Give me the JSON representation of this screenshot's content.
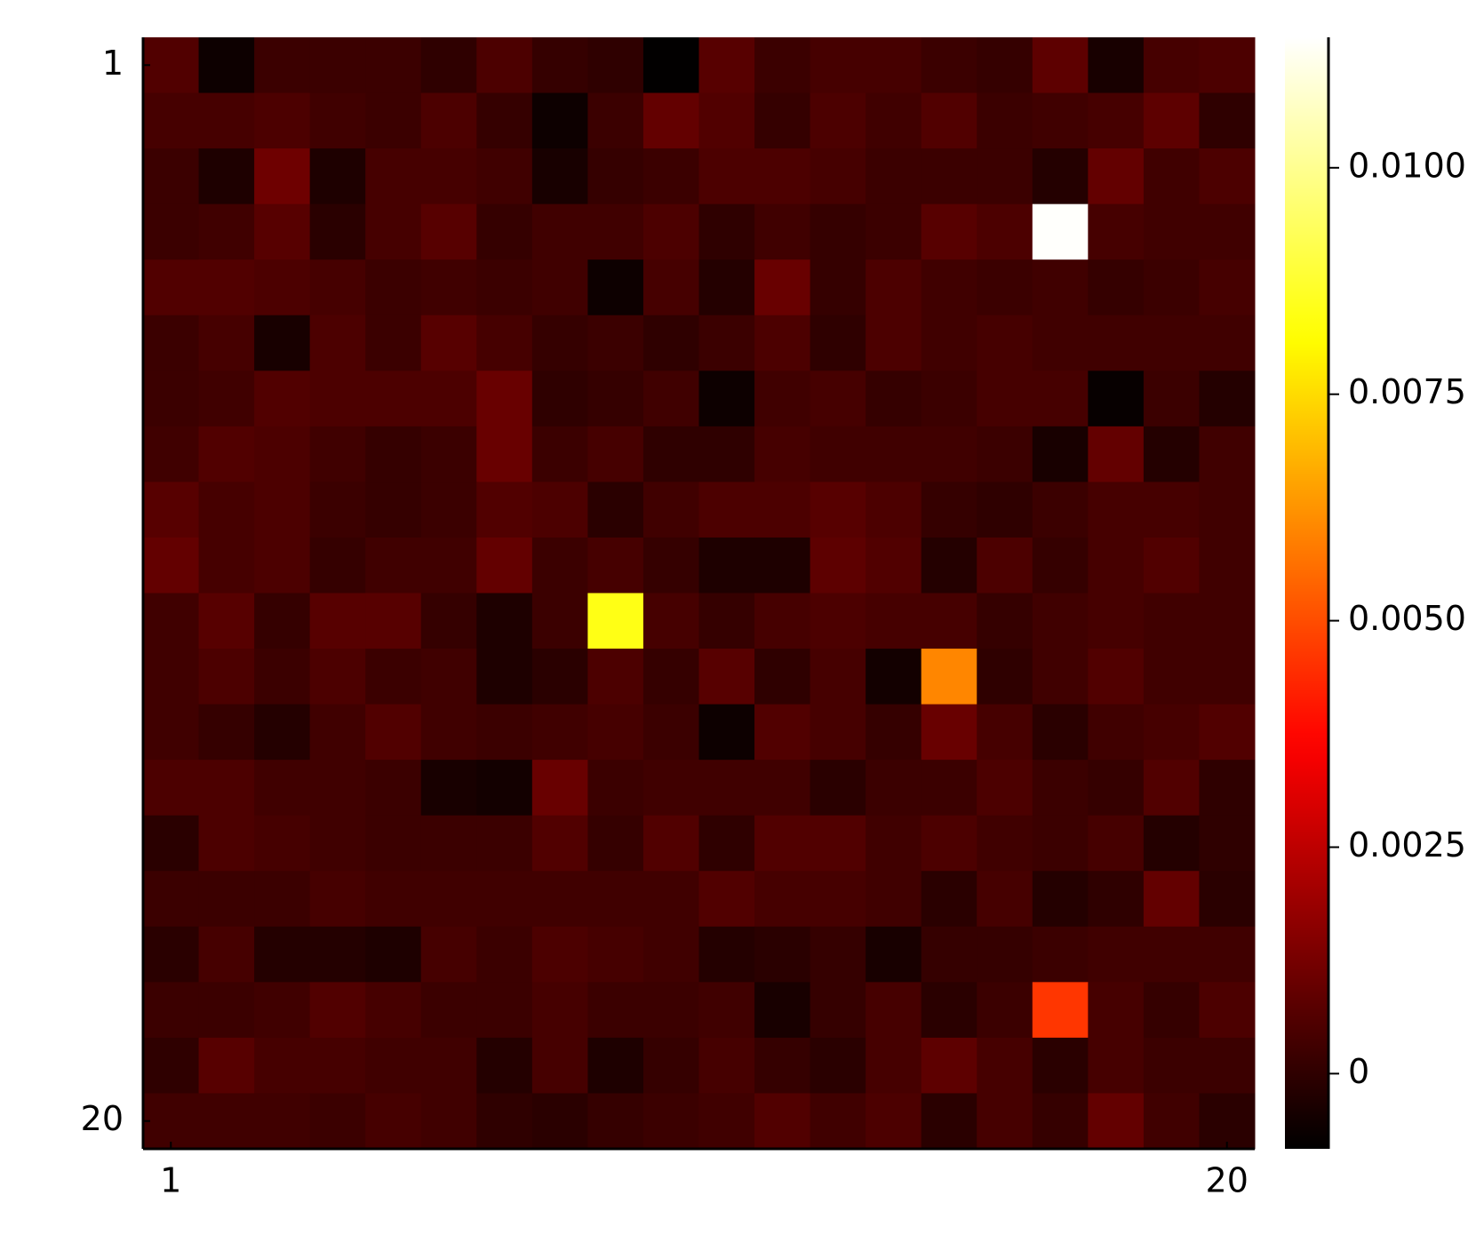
{
  "chart_data": {
    "type": "heatmap",
    "colormap": "hot",
    "xlim": [
      0.5,
      20.5
    ],
    "xticks": [
      1,
      20
    ],
    "ylim": [
      20.5,
      0.5
    ],
    "yticks": [
      1,
      20
    ],
    "zlim": [
      -0.00083,
      0.01144
    ],
    "colorbar_ticks": [
      0,
      0.0025,
      {
        "value": 0.005,
        "label": "0.0050"
      },
      0.0075,
      {
        "value": 0.01,
        "label": "0.0100"
      }
    ],
    "z": [
      [
        0.0006,
        -0.0006,
        0.0002,
        0.0002,
        0.0002,
        0.0,
        0.0005,
        0.0001,
        0.0,
        -0.0008,
        0.0007,
        0.0002,
        0.0004,
        0.0004,
        0.0002,
        0.0001,
        0.0008,
        -0.0004,
        0.0004,
        0.0005
      ],
      [
        0.0004,
        0.0004,
        0.0005,
        0.0003,
        0.0002,
        0.0005,
        0.0001,
        -0.0006,
        0.0002,
        0.0009,
        0.0006,
        0.0001,
        0.0005,
        0.0003,
        0.0006,
        0.0002,
        0.0003,
        0.0004,
        0.0008,
        0.0
      ],
      [
        0.0002,
        -0.0003,
        0.0011,
        -0.0003,
        0.0004,
        0.0004,
        0.0003,
        -0.0004,
        0.0001,
        0.0002,
        0.0005,
        0.0005,
        0.0004,
        0.0002,
        0.0002,
        0.0002,
        -0.0002,
        0.0009,
        0.0003,
        0.0005
      ],
      [
        0.0002,
        0.0003,
        0.0007,
        -0.0001,
        0.0004,
        0.0007,
        0.0001,
        0.0003,
        0.0003,
        0.0005,
        0.0,
        0.0003,
        0.0001,
        0.0002,
        0.0007,
        0.0005,
        0.0114,
        0.0004,
        0.0003,
        0.0003
      ],
      [
        0.0006,
        0.0006,
        0.0005,
        0.0004,
        0.0002,
        0.0003,
        0.0002,
        0.0003,
        -0.0006,
        0.0004,
        -0.0002,
        0.001,
        0.0001,
        0.0005,
        0.0003,
        0.0002,
        0.0003,
        0.0001,
        0.0002,
        0.0004
      ],
      [
        0.0002,
        0.0004,
        -0.0004,
        0.0005,
        0.0002,
        0.0007,
        0.0004,
        0.0001,
        0.0002,
        0.0,
        0.0002,
        0.0005,
        0.0,
        0.0005,
        0.0003,
        0.0004,
        0.0003,
        0.0003,
        0.0003,
        0.0003
      ],
      [
        0.0002,
        0.0003,
        0.0006,
        0.0005,
        0.0005,
        0.0005,
        0.001,
        0.0,
        0.0001,
        0.0003,
        -0.0006,
        0.0003,
        0.0004,
        0.0001,
        0.0002,
        0.0004,
        0.0004,
        -0.0007,
        0.0002,
        -0.0002
      ],
      [
        0.0003,
        0.0006,
        0.0005,
        0.0003,
        0.0001,
        0.0002,
        0.001,
        0.0002,
        0.0004,
        0.0,
        0.0,
        0.0004,
        0.0003,
        0.0003,
        0.0003,
        0.0002,
        -0.0004,
        0.0009,
        -0.0002,
        0.0003
      ],
      [
        0.0007,
        0.0004,
        0.0005,
        0.0002,
        0.0001,
        0.0002,
        0.0006,
        0.0005,
        -0.0001,
        0.0003,
        0.0005,
        0.0005,
        0.0007,
        0.0005,
        0.0001,
        0.0,
        0.0002,
        0.0004,
        0.0004,
        0.0003
      ],
      [
        0.0009,
        0.0004,
        0.0005,
        0.0001,
        0.0003,
        0.0003,
        0.0009,
        0.0002,
        0.0004,
        0.0001,
        -0.0003,
        -0.0003,
        0.0008,
        0.0006,
        -0.0002,
        0.0005,
        0.0001,
        0.0004,
        0.0006,
        0.0003
      ],
      [
        0.0003,
        0.0007,
        0.0001,
        0.0007,
        0.0007,
        0.0001,
        -0.0003,
        0.0002,
        0.0084,
        0.0004,
        0.0001,
        0.0004,
        0.0005,
        0.0004,
        0.0004,
        0.0001,
        0.0003,
        0.0004,
        0.0003,
        0.0003
      ],
      [
        0.0003,
        0.0005,
        0.0002,
        0.0005,
        0.0002,
        0.0003,
        -0.0003,
        -0.0001,
        0.0005,
        0.0001,
        0.0007,
        0.0,
        0.0004,
        -0.0005,
        0.006,
        0.0,
        0.0003,
        0.0006,
        0.0003,
        0.0003
      ],
      [
        0.0003,
        0.0001,
        -0.0002,
        0.0003,
        0.0006,
        0.0003,
        0.0002,
        0.0003,
        0.0004,
        0.0002,
        -0.0006,
        0.0006,
        0.0004,
        0.0001,
        0.001,
        0.0004,
        -0.0001,
        0.0003,
        0.0004,
        0.0006
      ],
      [
        0.0005,
        0.0005,
        0.0003,
        0.0003,
        0.0002,
        -0.0004,
        -0.0005,
        0.001,
        0.0002,
        0.0003,
        0.0003,
        0.0003,
        -0.0001,
        0.0002,
        0.0002,
        0.0005,
        0.0002,
        0.0001,
        0.0006,
        0.0
      ],
      [
        -0.0001,
        0.0005,
        0.0004,
        0.0003,
        0.0002,
        0.0002,
        0.0002,
        0.0006,
        0.0001,
        0.0006,
        0.0,
        0.0006,
        0.0006,
        0.0003,
        0.0005,
        0.0003,
        0.0002,
        0.0004,
        -0.0002,
        0.0
      ],
      [
        0.0002,
        0.0002,
        0.0002,
        0.0004,
        0.0003,
        0.0003,
        0.0003,
        0.0003,
        0.0003,
        0.0003,
        0.0006,
        0.0004,
        0.0004,
        0.0003,
        -0.0001,
        0.0004,
        -0.0002,
        0.0,
        0.0009,
        -0.0001
      ],
      [
        -0.0001,
        0.0004,
        -0.0002,
        -0.0002,
        -0.0003,
        0.0004,
        0.0002,
        0.0005,
        0.0004,
        0.0003,
        -0.0002,
        -0.0001,
        0.0001,
        -0.0004,
        0.0001,
        0.0001,
        0.0002,
        0.0003,
        0.0003,
        0.0003
      ],
      [
        0.0002,
        0.0002,
        0.0003,
        0.0006,
        0.0004,
        0.0002,
        0.0002,
        0.0004,
        0.0002,
        0.0002,
        0.0003,
        -0.0004,
        0.0001,
        0.0004,
        -0.0001,
        0.0002,
        0.0046,
        0.0004,
        0.0001,
        0.0005
      ],
      [
        0.0,
        0.0007,
        0.0004,
        0.0004,
        0.0003,
        0.0003,
        -0.0002,
        0.0004,
        -0.0003,
        0.0001,
        0.0004,
        0.0001,
        -0.0001,
        0.0004,
        0.0008,
        0.0004,
        -0.0001,
        0.0004,
        0.0002,
        0.0002
      ],
      [
        0.0003,
        0.0003,
        0.0003,
        0.0002,
        0.0004,
        0.0003,
        0.0,
        -0.0001,
        0.0001,
        0.0002,
        0.0003,
        0.0006,
        0.0003,
        0.0005,
        -0.0001,
        0.0004,
        0.0001,
        0.0009,
        0.0003,
        -0.0001
      ]
    ]
  }
}
